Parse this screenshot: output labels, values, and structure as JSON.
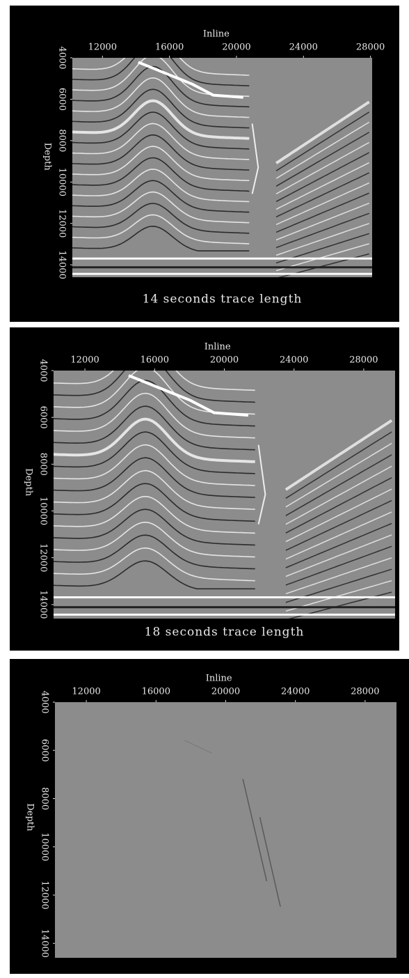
{
  "chart_data": [
    {
      "type": "image",
      "title": "14 seconds trace length",
      "xlabel": "Inline",
      "ylabel": "Depth",
      "xlim": [
        10200,
        28100
      ],
      "xticks": [
        12000,
        16000,
        20000,
        24000,
        28000
      ],
      "ylim": [
        4000,
        14600
      ],
      "yticks": [
        4000,
        6000,
        8000,
        10000,
        12000,
        14000
      ]
    },
    {
      "type": "image",
      "title": "18 seconds trace length",
      "xlabel": "Inline",
      "ylabel": "Depth",
      "xlim": [
        10200,
        29800
      ],
      "xticks": [
        12000,
        16000,
        20000,
        24000,
        28000
      ],
      "ylim": [
        4000,
        14600
      ],
      "yticks": [
        4000,
        6000,
        8000,
        10000,
        12000,
        14000
      ]
    },
    {
      "type": "image",
      "xlabel": "Inline",
      "ylabel": "Depth",
      "xlim": [
        10200,
        29800
      ],
      "xticks": [
        12000,
        16000,
        20000,
        24000,
        28000
      ],
      "ylim": [
        4000,
        14600
      ],
      "yticks": [
        4000,
        6000,
        8000,
        10000,
        12000,
        14000
      ]
    }
  ]
}
